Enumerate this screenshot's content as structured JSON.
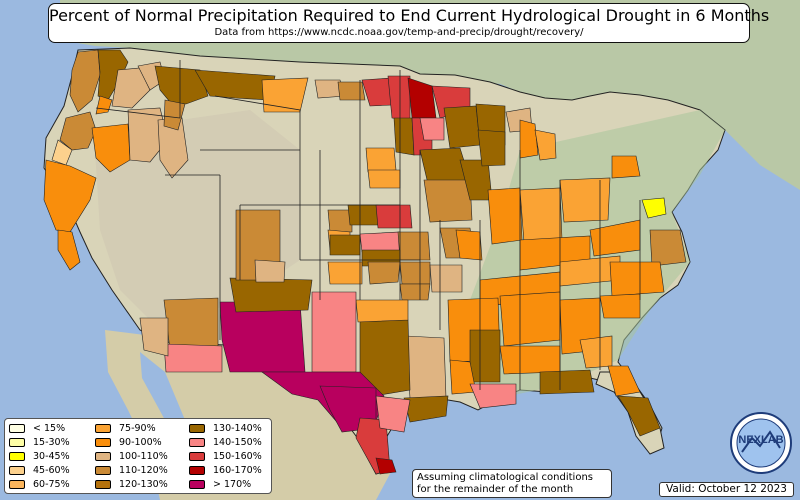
{
  "title": "Percent of Normal Precipitation Required to End Current Hydrological Drought in 6 Months",
  "subtitle": "Data from https://www.ncdc.noaa.gov/temp-and-precip/drought/recovery/",
  "legend": [
    {
      "label": "< 15%",
      "color": "#ffffe4"
    },
    {
      "label": "15-30%",
      "color": "#ffffa6"
    },
    {
      "label": "30-45%",
      "color": "#ffff00"
    },
    {
      "label": "45-60%",
      "color": "#fcd18d"
    },
    {
      "label": "60-75%",
      "color": "#fbb55c"
    },
    {
      "label": "75-90%",
      "color": "#faa334"
    },
    {
      "label": "90-100%",
      "color": "#f98e0c"
    },
    {
      "label": "100-110%",
      "color": "#dfb482"
    },
    {
      "label": "110-120%",
      "color": "#ca8a36"
    },
    {
      "label": "120-130%",
      "color": "#b5720c"
    },
    {
      "label": "130-140%",
      "color": "#996600"
    },
    {
      "label": "140-150%",
      "color": "#f88484"
    },
    {
      "label": "150-160%",
      "color": "#d93c3c"
    },
    {
      "label": "160-170%",
      "color": "#b30000"
    },
    {
      "label": "> 170%",
      "color": "#b8005e"
    }
  ],
  "note": "Assuming climatological conditions for the remainder of the month",
  "valid": "Valid: October 12 2023",
  "logo_text": "NEXLAB",
  "colors": {
    "ocean": "#9bb9e0",
    "land": "#d9d4b8",
    "forest": "#a8c49a",
    "mountain": "#cfc6b0",
    "border": "#222222"
  }
}
